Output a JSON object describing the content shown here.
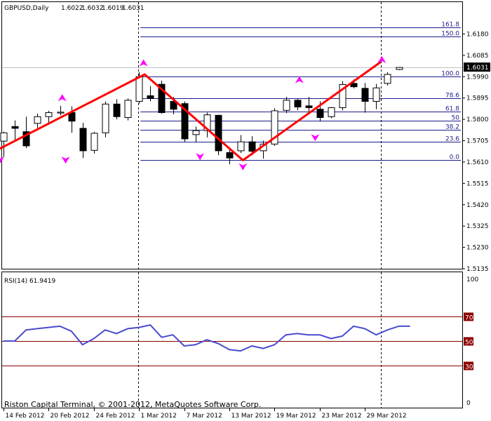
{
  "chart_data": [
    {
      "type": "candlestick",
      "title": "GBPUSD,Daily",
      "ohlc_readout": [
        "1.6022",
        "1.6032",
        "1.6019",
        "1.6031"
      ],
      "price_badge": "1.6031",
      "ylim": [
        1.5135,
        1.6275
      ],
      "ytick_labels": [
        "1.6180",
        "1.6085",
        "1.5990",
        "1.5895",
        "1.5800",
        "1.5705",
        "1.5610",
        "1.5515",
        "1.5420",
        "1.5325",
        "1.5230",
        "1.5135"
      ],
      "xtick_labels": [
        "14 Feb 2012",
        "20 Feb 2012",
        "24 Feb 2012",
        "1 Mar 2012",
        "7 Mar 2012",
        "13 Mar 2012",
        "19 Mar 2012",
        "23 Mar 2012",
        "29 Mar 2012"
      ],
      "xtick_bar_index": [
        0,
        4,
        8,
        12,
        16,
        20,
        24,
        28,
        32
      ],
      "candles": [
        {
          "o": 1.5703,
          "h": 1.5745,
          "l": 1.5633,
          "c": 1.574
        },
        {
          "o": 1.5768,
          "h": 1.5795,
          "l": 1.5708,
          "c": 1.576
        },
        {
          "o": 1.5745,
          "h": 1.5812,
          "l": 1.5672,
          "c": 1.5682
        },
        {
          "o": 1.5782,
          "h": 1.5826,
          "l": 1.5762,
          "c": 1.5812
        },
        {
          "o": 1.5812,
          "h": 1.5838,
          "l": 1.578,
          "c": 1.583
        },
        {
          "o": 1.5828,
          "h": 1.586,
          "l": 1.5818,
          "c": 1.5832
        },
        {
          "o": 1.583,
          "h": 1.5858,
          "l": 1.574,
          "c": 1.5792
        },
        {
          "o": 1.576,
          "h": 1.5785,
          "l": 1.5628,
          "c": 1.566
        },
        {
          "o": 1.5662,
          "h": 1.5745,
          "l": 1.5648,
          "c": 1.5738
        },
        {
          "o": 1.574,
          "h": 1.588,
          "l": 1.572,
          "c": 1.5868
        },
        {
          "o": 1.5868,
          "h": 1.589,
          "l": 1.58,
          "c": 1.5812
        },
        {
          "o": 1.5808,
          "h": 1.5893,
          "l": 1.5795,
          "c": 1.5885
        },
        {
          "o": 1.588,
          "h": 1.601,
          "l": 1.587,
          "c": 1.599
        },
        {
          "o": 1.5905,
          "h": 1.5948,
          "l": 1.588,
          "c": 1.5893
        },
        {
          "o": 1.5956,
          "h": 1.5972,
          "l": 1.5825,
          "c": 1.583
        },
        {
          "o": 1.588,
          "h": 1.59,
          "l": 1.5822,
          "c": 1.5845
        },
        {
          "o": 1.587,
          "h": 1.588,
          "l": 1.57,
          "c": 1.5713
        },
        {
          "o": 1.5732,
          "h": 1.5768,
          "l": 1.5698,
          "c": 1.575
        },
        {
          "o": 1.575,
          "h": 1.583,
          "l": 1.572,
          "c": 1.582
        },
        {
          "o": 1.5818,
          "h": 1.582,
          "l": 1.564,
          "c": 1.566
        },
        {
          "o": 1.5652,
          "h": 1.5668,
          "l": 1.56,
          "c": 1.5628
        },
        {
          "o": 1.566,
          "h": 1.573,
          "l": 1.565,
          "c": 1.57
        },
        {
          "o": 1.57,
          "h": 1.5725,
          "l": 1.564,
          "c": 1.5658
        },
        {
          "o": 1.566,
          "h": 1.5705,
          "l": 1.5625,
          "c": 1.569
        },
        {
          "o": 1.569,
          "h": 1.585,
          "l": 1.5682,
          "c": 1.5838
        },
        {
          "o": 1.584,
          "h": 1.59,
          "l": 1.5828,
          "c": 1.5885
        },
        {
          "o": 1.5885,
          "h": 1.589,
          "l": 1.584,
          "c": 1.5855
        },
        {
          "o": 1.586,
          "h": 1.59,
          "l": 1.583,
          "c": 1.5852
        },
        {
          "o": 1.5845,
          "h": 1.588,
          "l": 1.579,
          "c": 1.5808
        },
        {
          "o": 1.5812,
          "h": 1.5855,
          "l": 1.5805,
          "c": 1.5852
        },
        {
          "o": 1.5852,
          "h": 1.597,
          "l": 1.584,
          "c": 1.5955
        },
        {
          "o": 1.596,
          "h": 1.5978,
          "l": 1.5938,
          "c": 1.5945
        },
        {
          "o": 1.5938,
          "h": 1.5962,
          "l": 1.583,
          "c": 1.588
        },
        {
          "o": 1.588,
          "h": 1.5958,
          "l": 1.5845,
          "c": 1.594
        },
        {
          "o": 1.596,
          "h": 1.601,
          "l": 1.595,
          "c": 1.6
        },
        {
          "o": 1.6022,
          "h": 1.6032,
          "l": 1.6019,
          "c": 1.6031
        }
      ],
      "fibonacci_levels": [
        {
          "label": "161.8",
          "price": 1.621
        },
        {
          "label": "150.0",
          "price": 1.6168
        },
        {
          "label": "100.0",
          "price": 1.599
        },
        {
          "label": "78.6",
          "price": 1.5895
        },
        {
          "label": "61.8",
          "price": 1.5835
        },
        {
          "label": "50",
          "price": 1.5795
        },
        {
          "label": "38.2",
          "price": 1.5752
        },
        {
          "label": "23.6",
          "price": 1.57
        },
        {
          "label": "0.0",
          "price": 1.5618
        }
      ],
      "zigzag": [
        {
          "bar": -0.5,
          "price": 1.5665
        },
        {
          "bar": 12.5,
          "price": 1.6
        },
        {
          "bar": 21.2,
          "price": 1.5618
        },
        {
          "bar": 33.4,
          "price": 1.6055
        }
      ],
      "fractal_up_markers": [
        {
          "bar": 5.2,
          "price": 1.589
        },
        {
          "bar": 12.4,
          "price": 1.6045
        },
        {
          "bar": 26.2,
          "price": 1.597
        },
        {
          "bar": 33.5,
          "price": 1.606
        }
      ],
      "fractal_down_markers": [
        {
          "bar": -0.3,
          "price": 1.5625
        },
        {
          "bar": 5.5,
          "price": 1.5625
        },
        {
          "bar": 17.4,
          "price": 1.564
        },
        {
          "bar": 21.2,
          "price": 1.5595
        },
        {
          "bar": 27.6,
          "price": 1.5725
        }
      ]
    },
    {
      "type": "line",
      "title": "RSI(14) 61.9419",
      "ylim": [
        0,
        100
      ],
      "ytick_labels": [
        "100",
        "0"
      ],
      "levels": [
        {
          "label": "70",
          "value": 70
        },
        {
          "label": "50",
          "value": 50
        },
        {
          "label": "30",
          "value": 30
        }
      ],
      "values": [
        50,
        50,
        59,
        60,
        61,
        62,
        58,
        47,
        52,
        59,
        56,
        60,
        61,
        63,
        53,
        55,
        46,
        47,
        51,
        48,
        43,
        42,
        46,
        44,
        47,
        55,
        56,
        55,
        55,
        52,
        54,
        62,
        60,
        55,
        59,
        62,
        62
      ]
    }
  ],
  "footer": "Riston Capital Terminal, © 2001-2012, MetaQuotes Software Corp."
}
